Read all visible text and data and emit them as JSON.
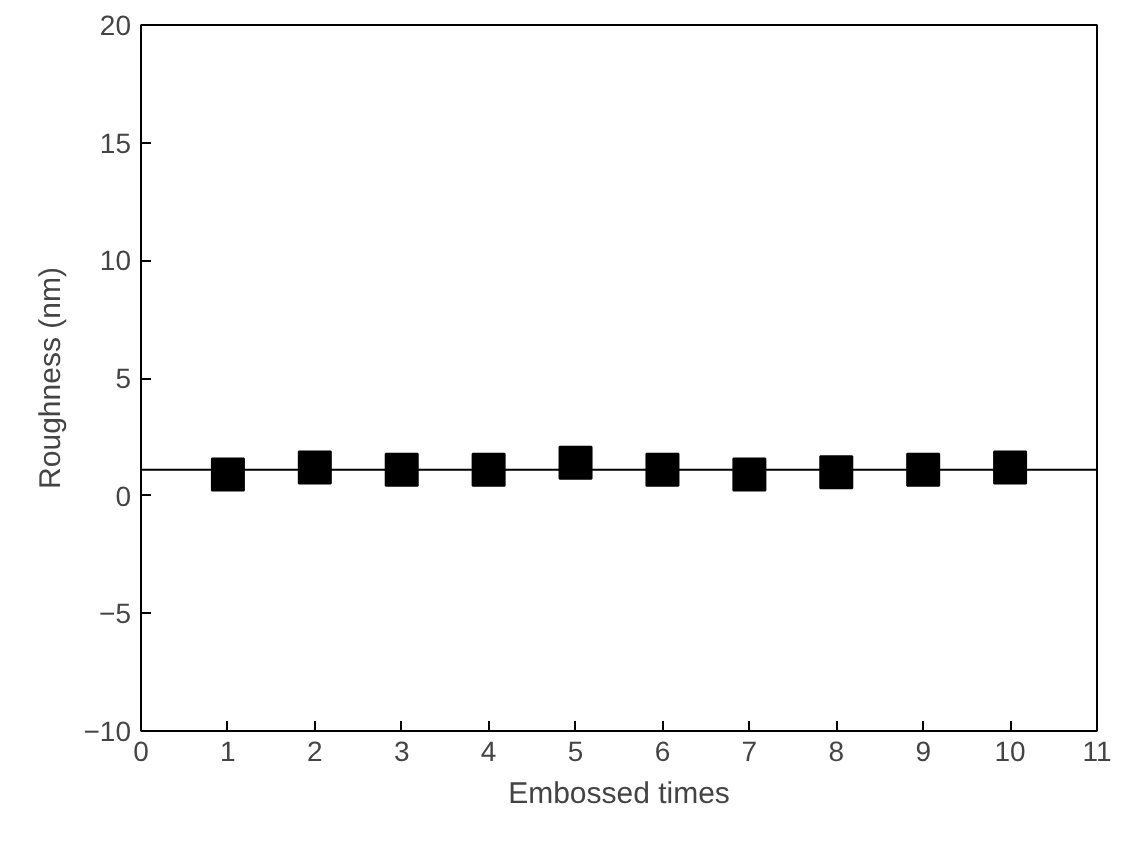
{
  "chart_data": {
    "type": "scatter",
    "xlabel": "Embossed times",
    "ylabel": "Roughness (nm)",
    "x": [
      1,
      2,
      3,
      4,
      5,
      6,
      7,
      8,
      9,
      10
    ],
    "series": [
      {
        "color": "#000000",
        "values": [
          0.9,
          1.2,
          1.1,
          1.1,
          1.4,
          1.1,
          0.9,
          1.0,
          1.1,
          1.2
        ]
      }
    ],
    "marker": "square",
    "xlim": [
      0,
      11
    ],
    "ylim": [
      -10,
      20
    ],
    "xticks": [
      0,
      1,
      2,
      3,
      4,
      5,
      6,
      7,
      8,
      9,
      10,
      11
    ],
    "yticks": [
      -10,
      -5,
      0,
      5,
      10,
      15,
      20
    ],
    "ref_lines": [
      {
        "axis": "y",
        "value": 1.1,
        "color": "#000000"
      }
    ],
    "grid": false
  }
}
